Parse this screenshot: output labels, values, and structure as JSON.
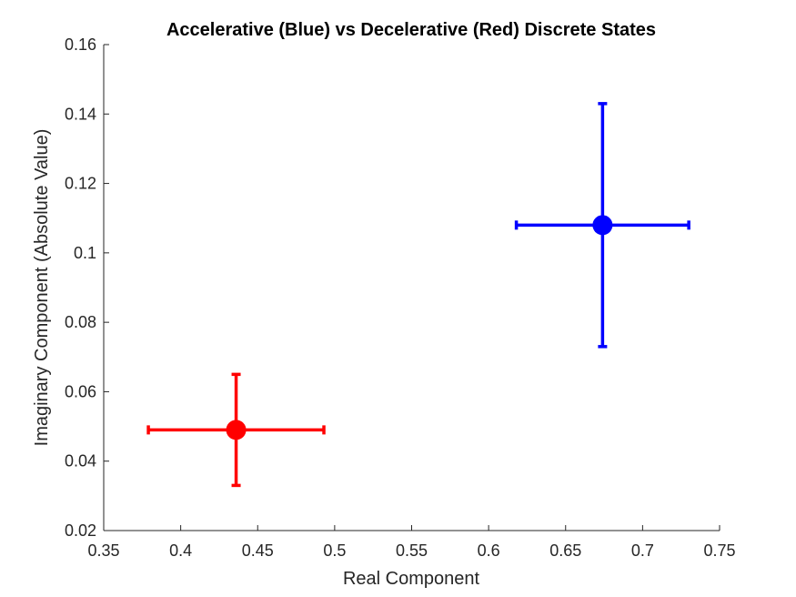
{
  "chart_data": {
    "type": "scatter",
    "title": "Accelerative (Blue) vs Decelerative (Red) Discrete States",
    "xlabel": "Real Component",
    "ylabel": "Imaginary Component (Absolute Value)",
    "xlim": [
      0.35,
      0.75
    ],
    "ylim": [
      0.02,
      0.16
    ],
    "xticks": [
      "0.35",
      "0.4",
      "0.45",
      "0.5",
      "0.55",
      "0.6",
      "0.65",
      "0.7",
      "0.75"
    ],
    "yticks": [
      "0.02",
      "0.04",
      "0.06",
      "0.08",
      "0.1",
      "0.12",
      "0.14",
      "0.16"
    ],
    "grid": false,
    "series": [
      {
        "color": "#ff0000",
        "points": [
          {
            "x": 0.436,
            "y": 0.049,
            "x_err": [
              0.379,
              0.493
            ],
            "y_err": [
              0.033,
              0.065
            ]
          }
        ]
      },
      {
        "color": "#0000ff",
        "points": [
          {
            "x": 0.674,
            "y": 0.108,
            "x_err": [
              0.618,
              0.73
            ],
            "y_err": [
              0.073,
              0.143
            ]
          }
        ]
      }
    ]
  }
}
